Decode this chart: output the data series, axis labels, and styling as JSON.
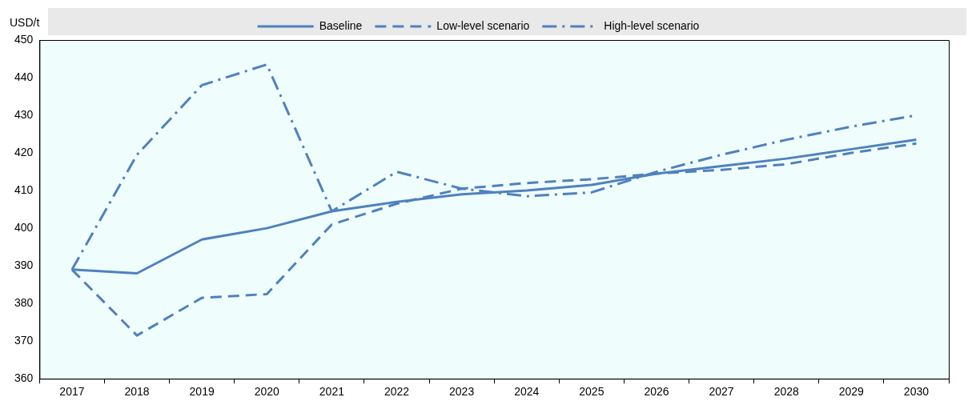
{
  "chart_data": {
    "type": "line",
    "ylabel": "USD/t",
    "categories": [
      "2017",
      "2018",
      "2019",
      "2020",
      "2021",
      "2022",
      "2023",
      "2024",
      "2025",
      "2026",
      "2027",
      "2028",
      "2029",
      "2030"
    ],
    "series": [
      {
        "name": "Baseline",
        "color": "#4f81bd",
        "line_style": "solid",
        "values": [
          389,
          388,
          397,
          400,
          404.5,
          407,
          409,
          410,
          411.5,
          414.5,
          416.5,
          418.5,
          421,
          423.5
        ]
      },
      {
        "name": "Low-level scenario",
        "color": "#4f81bd",
        "line_style": "dashed",
        "values": [
          389,
          371.5,
          381.5,
          382.5,
          401,
          406.5,
          410.5,
          412,
          413,
          414.5,
          415.5,
          417,
          420,
          422.5
        ]
      },
      {
        "name": "High-level scenario",
        "color": "#4f81bd",
        "line_style": "dashdot",
        "values": [
          389,
          419.5,
          438,
          443.5,
          404.5,
          415,
          410.5,
          408.5,
          409.5,
          415,
          419.5,
          423.5,
          427,
          430
        ]
      }
    ],
    "ylim": [
      360,
      450
    ],
    "yticks": [
      360,
      370,
      380,
      390,
      400,
      410,
      420,
      430,
      440,
      450
    ],
    "grid": false,
    "legend": "top",
    "marker": "none"
  }
}
